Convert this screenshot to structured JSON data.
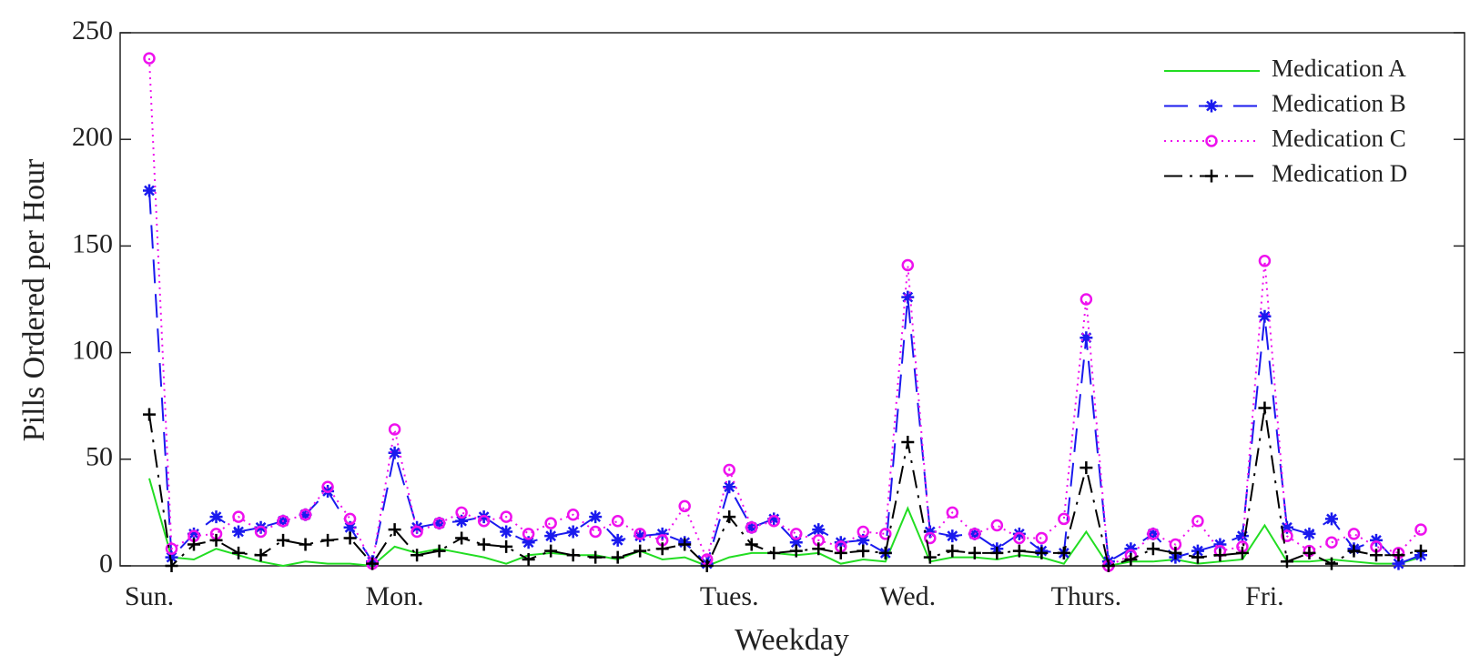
{
  "chart_data": {
    "type": "line",
    "xlabel": "Weekday",
    "ylabel": "Pills Ordered per Hour",
    "categories": [
      "Sun.",
      null,
      null,
      null,
      null,
      null,
      null,
      null,
      null,
      null,
      null,
      "Mon.",
      null,
      null,
      null,
      null,
      null,
      null,
      null,
      null,
      null,
      null,
      null,
      null,
      null,
      null,
      "Tues.",
      null,
      null,
      null,
      null,
      null,
      null,
      null,
      "Wed.",
      null,
      null,
      null,
      null,
      null,
      null,
      null,
      "Thurs.",
      null,
      null,
      null,
      null,
      null,
      null,
      null,
      "Fri.",
      null,
      null,
      null,
      null,
      null,
      null,
      null
    ],
    "ylim": [
      0,
      250
    ],
    "yticks": [
      0,
      50,
      100,
      150,
      200,
      250
    ],
    "legend": "upper right",
    "series": [
      {
        "name": "Medication A",
        "color": "#22dd22",
        "style": "solid",
        "marker": "none",
        "values": [
          41,
          4,
          3,
          8,
          5,
          2,
          0,
          2,
          1,
          1,
          0,
          9,
          6,
          8,
          6,
          4,
          1,
          5,
          6,
          5,
          5,
          3,
          7,
          3,
          4,
          0,
          4,
          6,
          6,
          5,
          6,
          1,
          3,
          2,
          27,
          2,
          4,
          4,
          3,
          5,
          4,
          1,
          16,
          0,
          2,
          2,
          3,
          1,
          2,
          3,
          19,
          2,
          2,
          3,
          2,
          1,
          1,
          4
        ]
      },
      {
        "name": "Medication B",
        "color": "#1a1aee",
        "style": "dashed",
        "marker": "star",
        "values": [
          176,
          4,
          15,
          23,
          16,
          18,
          21,
          24,
          35,
          18,
          2,
          53,
          18,
          20,
          21,
          23,
          16,
          11,
          14,
          16,
          23,
          12,
          14,
          15,
          11,
          1,
          37,
          18,
          22,
          11,
          17,
          11,
          12,
          6,
          126,
          16,
          14,
          15,
          8,
          15,
          7,
          6,
          107,
          2,
          8,
          15,
          4,
          7,
          10,
          14,
          117,
          18,
          15,
          22,
          8,
          12,
          1,
          5
        ]
      },
      {
        "name": "Medication C",
        "color": "#ee11ee",
        "style": "dotted",
        "marker": "circle",
        "values": [
          238,
          8,
          14,
          15,
          23,
          16,
          21,
          24,
          37,
          22,
          1,
          64,
          16,
          20,
          25,
          21,
          23,
          15,
          20,
          24,
          16,
          21,
          15,
          12,
          28,
          3,
          45,
          18,
          21,
          15,
          12,
          9,
          16,
          15,
          141,
          13,
          25,
          15,
          19,
          13,
          13,
          22,
          125,
          0,
          5,
          15,
          10,
          21,
          7,
          9,
          143,
          14,
          7,
          11,
          15,
          9,
          6,
          17
        ]
      },
      {
        "name": "Medication D",
        "color": "#000000",
        "style": "dashdot",
        "marker": "plus",
        "values": [
          71,
          0,
          10,
          12,
          6,
          5,
          12,
          10,
          12,
          13,
          1,
          17,
          5,
          7,
          13,
          10,
          9,
          3,
          7,
          5,
          4,
          4,
          7,
          8,
          10,
          0,
          23,
          10,
          6,
          7,
          8,
          6,
          7,
          6,
          58,
          4,
          7,
          6,
          6,
          7,
          6,
          6,
          46,
          0,
          3,
          8,
          6,
          4,
          5,
          6,
          74,
          2,
          6,
          1,
          7,
          5,
          5,
          7
        ]
      }
    ]
  }
}
